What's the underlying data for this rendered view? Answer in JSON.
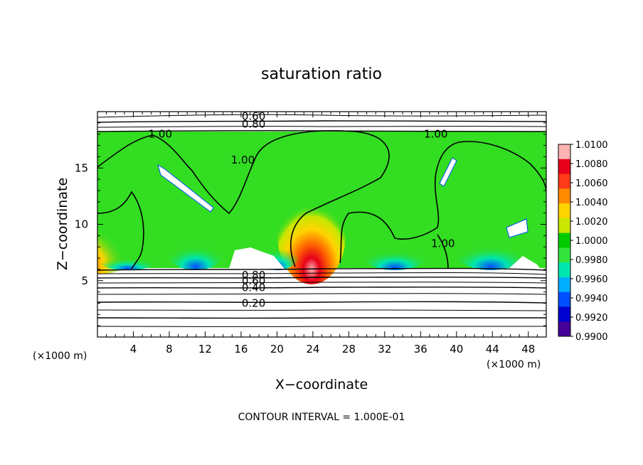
{
  "chart_data": {
    "type": "heatmap",
    "title": "saturation ratio",
    "xlabel": "X−coordinate",
    "ylabel": "Z−coordinate",
    "x_unit": "(×1000 m)",
    "z_unit": "(×1000 m)",
    "xlim": [
      0,
      50
    ],
    "ylim": [
      0,
      20
    ],
    "x_ticks": [
      4,
      8,
      12,
      16,
      20,
      24,
      28,
      32,
      36,
      40,
      44,
      48
    ],
    "y_ticks": [
      5,
      10,
      15
    ],
    "footer": "CONTOUR INTERVAL = 1.000E-01",
    "colorbar": {
      "min": 0.99,
      "max": 1.01,
      "labels": [
        "1.0100",
        "1.0080",
        "1.0060",
        "1.0040",
        "1.0020",
        "1.0000",
        "0.9980",
        "0.9960",
        "0.9940",
        "0.9920",
        "0.9900"
      ],
      "colors": [
        "#ffb3b3",
        "#e8001a",
        "#ff3b1a",
        "#ff8a00",
        "#ffd400",
        "#c8e600",
        "#00cc00",
        "#34e43c",
        "#00e6b0",
        "#00b0ff",
        "#0050ff",
        "#0000d0",
        "#440099"
      ]
    },
    "contour_labels": [
      {
        "text": "0.60",
        "x": 17.4,
        "z": 19.6
      },
      {
        "text": "0.80",
        "x": 17.4,
        "z": 18.9
      },
      {
        "text": "1.00",
        "x": 7.0,
        "z": 18.0
      },
      {
        "text": "1.00",
        "x": 37.7,
        "z": 18.0
      },
      {
        "text": "1.00",
        "x": 16.2,
        "z": 15.7
      },
      {
        "text": "1.00",
        "x": 38.5,
        "z": 8.3
      },
      {
        "text": "0.80",
        "x": 17.4,
        "z": 5.5
      },
      {
        "text": "0.60",
        "x": 17.4,
        "z": 5.0
      },
      {
        "text": "0.40",
        "x": 17.4,
        "z": 4.4
      },
      {
        "text": "0.20",
        "x": 17.4,
        "z": 3.0
      }
    ]
  }
}
